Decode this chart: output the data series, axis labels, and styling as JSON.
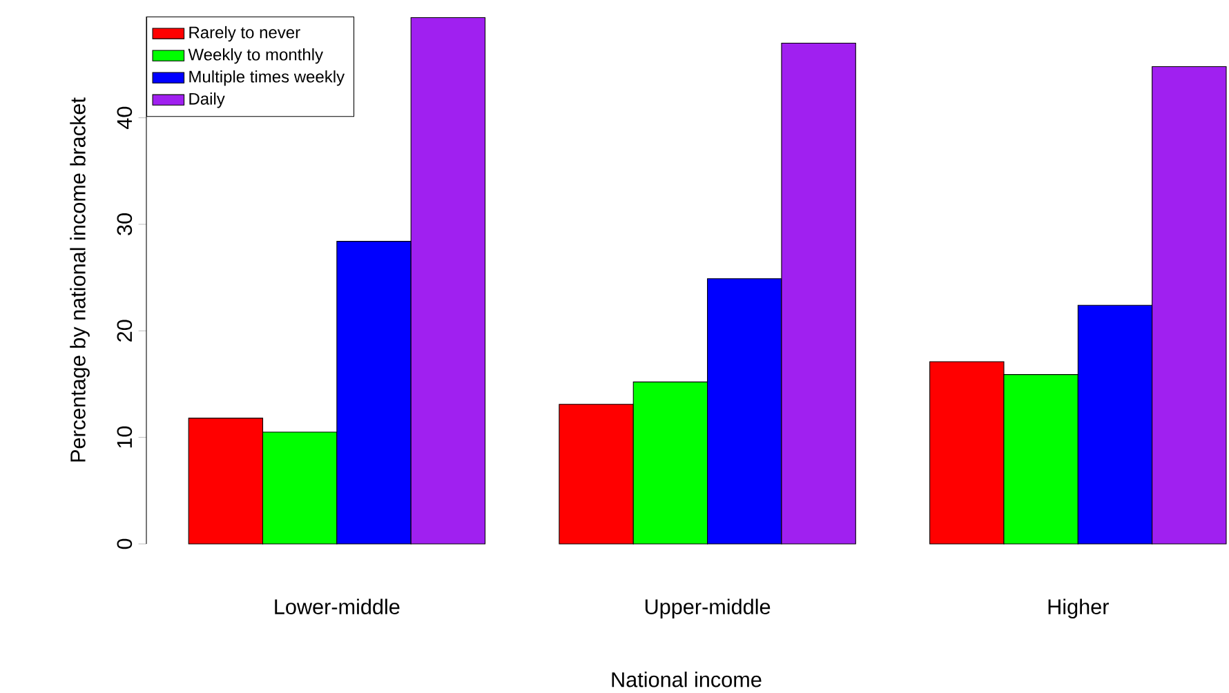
{
  "chart_data": {
    "type": "bar",
    "xlabel": "National income",
    "ylabel": "Percentage by national income bracket",
    "categories": [
      "Lower-middle",
      "Upper-middle",
      "Higher"
    ],
    "series": [
      {
        "name": "Rarely to never",
        "color": "#ff0000",
        "values": [
          11.8,
          13.1,
          17.1
        ]
      },
      {
        "name": "Weekly to monthly",
        "color": "#00ff00",
        "values": [
          10.5,
          15.2,
          15.9
        ]
      },
      {
        "name": "Multiple times weekly",
        "color": "#0000ff",
        "values": [
          28.4,
          24.9,
          22.4
        ]
      },
      {
        "name": "Daily",
        "color": "#a020f0",
        "values": [
          49.4,
          47.0,
          44.8
        ]
      }
    ],
    "ylim": [
      0,
      49.5
    ],
    "yticks": [
      0,
      10,
      20,
      30,
      40
    ],
    "legend": "top left"
  }
}
